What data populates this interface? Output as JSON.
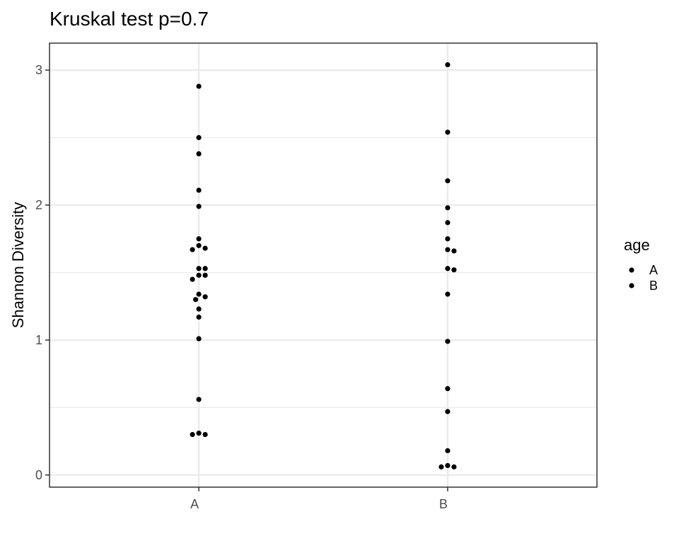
{
  "chart_data": {
    "type": "scatter",
    "title": "Kruskal test p=0.7",
    "xlabel": "",
    "ylabel": "Shannon Diversity",
    "categories": [
      "A",
      "B"
    ],
    "ylim": [
      -0.09,
      3.2
    ],
    "yticks": [
      0,
      1,
      2,
      3
    ],
    "grid": true,
    "legend": {
      "title": "age",
      "position": "right",
      "entries": [
        "A",
        "B"
      ]
    },
    "point_color": "#000000",
    "series": [
      {
        "name": "A",
        "values": [
          2.88,
          2.5,
          2.38,
          2.11,
          1.99,
          1.75,
          1.7,
          1.68,
          1.67,
          1.53,
          1.53,
          1.48,
          1.48,
          1.45,
          1.34,
          1.32,
          1.3,
          1.23,
          1.17,
          1.01,
          0.56,
          0.31,
          0.3,
          0.3
        ]
      },
      {
        "name": "B",
        "values": [
          3.04,
          2.54,
          2.18,
          1.98,
          1.87,
          1.75,
          1.67,
          1.66,
          1.53,
          1.52,
          1.34,
          0.99,
          0.64,
          0.47,
          0.18,
          0.07,
          0.06,
          0.06
        ]
      }
    ]
  }
}
